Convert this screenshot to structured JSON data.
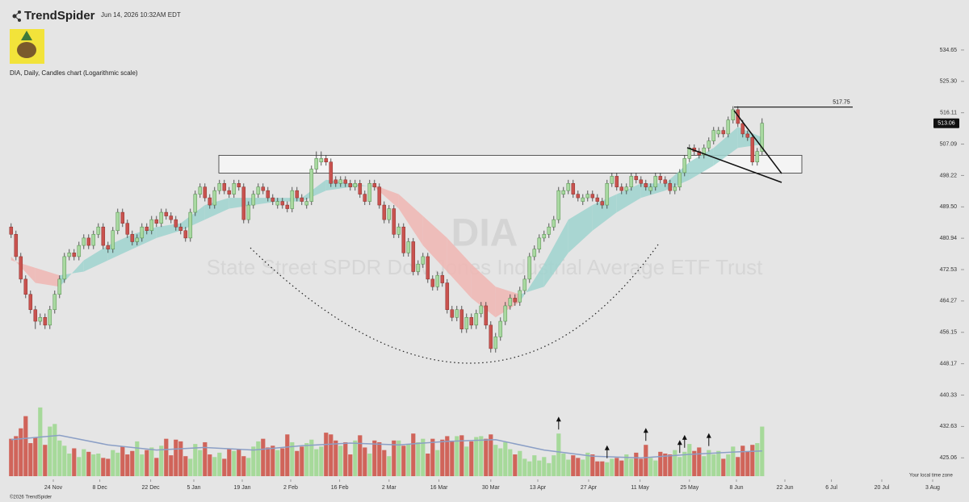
{
  "header": {
    "brand": "TrendSpider",
    "timestamp": "Jun 14, 2026 10:32AM EDT"
  },
  "footer": {
    "copyright": "©2026 TrendSpider",
    "timezone_note": "Your local time zone"
  },
  "chart_data": {
    "type": "candlestick",
    "title": "DIA, Daily, Candles chart (Logarithmic scale)",
    "watermark_symbol": "DIA",
    "watermark_name": "State Street SPDR Dow Jones Industrial Average ETF Trust",
    "log_scale": true,
    "grid": false,
    "up_color": "#a9d9a1",
    "down_color": "#c9534f",
    "ylim": [
      420.7,
      540
    ],
    "yticks": [
      534.65,
      {
        "value": 525.3,
        "label": "525.30"
      },
      516.11,
      507.09,
      498.22,
      {
        "value": 489.5,
        "label": "489.50"
      },
      480.94,
      472.53,
      464.27,
      456.15,
      448.17,
      440.33,
      432.63,
      425.06
    ],
    "xlim": [
      -2.3,
      197.7
    ],
    "xticks": [
      {
        "value": 8.7,
        "label": "24 Nov"
      },
      {
        "value": 18.3,
        "label": "8 Dec"
      },
      {
        "value": 28.8,
        "label": "22 Dec"
      },
      {
        "value": 37.7,
        "label": "5 Jan"
      },
      {
        "value": 47.7,
        "label": "19 Jan"
      },
      {
        "value": 57.7,
        "label": "2 Feb"
      },
      {
        "value": 67.8,
        "label": "16 Feb"
      },
      {
        "value": 78,
        "label": "2 Mar"
      },
      {
        "value": 88.3,
        "label": "16 Mar"
      },
      {
        "value": 99,
        "label": "30 Mar"
      },
      {
        "value": 108.7,
        "label": "13 Apr"
      },
      {
        "value": 119.2,
        "label": "27 Apr"
      },
      {
        "value": 129.8,
        "label": "11 May"
      },
      {
        "value": 140,
        "label": "25 May"
      },
      {
        "value": 149.7,
        "label": "8 Jun"
      },
      {
        "value": 159.7,
        "label": "22 Jun"
      },
      {
        "value": 169.3,
        "label": "6 Jul"
      },
      {
        "value": 179.7,
        "label": "20 Jul"
      },
      {
        "value": 190.2,
        "label": "3 Aug"
      }
    ],
    "candles": [
      [
        484,
        485,
        481,
        482
      ],
      [
        482,
        483,
        475,
        476
      ],
      [
        476,
        477,
        469,
        470
      ],
      [
        470,
        471,
        465,
        466
      ],
      [
        466,
        467,
        461,
        462
      ],
      [
        462,
        463,
        457,
        459
      ],
      [
        459,
        461,
        458,
        460
      ],
      [
        460,
        461,
        457,
        458
      ],
      [
        458,
        463,
        457,
        462
      ],
      [
        462,
        467,
        461,
        466
      ],
      [
        466,
        471,
        465,
        470
      ],
      [
        470,
        477,
        469,
        476
      ],
      [
        476,
        478,
        475,
        477
      ],
      [
        477,
        478,
        475,
        476
      ],
      [
        476,
        480,
        475,
        479
      ],
      [
        479,
        482,
        478,
        481
      ],
      [
        481,
        482,
        478,
        479
      ],
      [
        479,
        483,
        478,
        482
      ],
      [
        482,
        485,
        481,
        484
      ],
      [
        484,
        485,
        478,
        479
      ],
      [
        479,
        480,
        477,
        478
      ],
      [
        478,
        484,
        477,
        483
      ],
      [
        483,
        489,
        482,
        488
      ],
      [
        488,
        489,
        484,
        485
      ],
      [
        485,
        486,
        481,
        482
      ],
      [
        482,
        483,
        479,
        480
      ],
      [
        480,
        482,
        479,
        481
      ],
      [
        481,
        485,
        480,
        484
      ],
      [
        484,
        485,
        482,
        483
      ],
      [
        483,
        487,
        482,
        486
      ],
      [
        486,
        487,
        484,
        485
      ],
      [
        485,
        489,
        484,
        488
      ],
      [
        488,
        489,
        486,
        487
      ],
      [
        487,
        488,
        485,
        486
      ],
      [
        486,
        487,
        483,
        484
      ],
      [
        484,
        485,
        482,
        483
      ],
      [
        483,
        484,
        480,
        481
      ],
      [
        481,
        489,
        480,
        488
      ],
      [
        488,
        494,
        487,
        493
      ],
      [
        493,
        496,
        492,
        495
      ],
      [
        495,
        496,
        491,
        492
      ],
      [
        492,
        493,
        489,
        490
      ],
      [
        490,
        495,
        489,
        494
      ],
      [
        494,
        497,
        493,
        496
      ],
      [
        496,
        497,
        493,
        494
      ],
      [
        494,
        495,
        492,
        493
      ],
      [
        493,
        497,
        492,
        496
      ],
      [
        496,
        497,
        494,
        495
      ],
      [
        495,
        496,
        485,
        486
      ],
      [
        486,
        491,
        485,
        490
      ],
      [
        490,
        494,
        489,
        493
      ],
      [
        493,
        496,
        492,
        495
      ],
      [
        495,
        496,
        493,
        494
      ],
      [
        494,
        495,
        491,
        492
      ],
      [
        492,
        493,
        490,
        491
      ],
      [
        490,
        492,
        489,
        491
      ],
      [
        491,
        492,
        489,
        490
      ],
      [
        490,
        491,
        488,
        489
      ],
      [
        489,
        495,
        488,
        494
      ],
      [
        494,
        495,
        491,
        492
      ],
      [
        492,
        493,
        490,
        491
      ],
      [
        490,
        492,
        489,
        491
      ],
      [
        491,
        501,
        490,
        500
      ],
      [
        500,
        505,
        499,
        503
      ],
      [
        502,
        505,
        501,
        503
      ],
      [
        503,
        504,
        501,
        502
      ],
      [
        502,
        503,
        495,
        496
      ],
      [
        497,
        498,
        495,
        496
      ],
      [
        496,
        498,
        495,
        497
      ],
      [
        497,
        498,
        495,
        496
      ],
      [
        496,
        497,
        494,
        495
      ],
      [
        495,
        497,
        494,
        496
      ],
      [
        496,
        497,
        492,
        493
      ],
      [
        493,
        494,
        490,
        491
      ],
      [
        491,
        497,
        490,
        496
      ],
      [
        496,
        497,
        494,
        495
      ],
      [
        495,
        496,
        489,
        490
      ],
      [
        490,
        491,
        485,
        486
      ],
      [
        486,
        490,
        485,
        489
      ],
      [
        489,
        490,
        481,
        482
      ],
      [
        482,
        485,
        481,
        484
      ],
      [
        484,
        485,
        476,
        477
      ],
      [
        477,
        481,
        476,
        480
      ],
      [
        480,
        481,
        471,
        472
      ],
      [
        472,
        475,
        471,
        474
      ],
      [
        474,
        477,
        473,
        476
      ],
      [
        476,
        477,
        469,
        470
      ],
      [
        470,
        471,
        467,
        468
      ],
      [
        468,
        472,
        467,
        471
      ],
      [
        471,
        472,
        468,
        469
      ],
      [
        469,
        470,
        461,
        462
      ],
      [
        462,
        463,
        459,
        460
      ],
      [
        460,
        463,
        459,
        462
      ],
      [
        462,
        463,
        456,
        457
      ],
      [
        457,
        461,
        456,
        460
      ],
      [
        460,
        461,
        457,
        458
      ],
      [
        458,
        462,
        457,
        461
      ],
      [
        461,
        464,
        460,
        463
      ],
      [
        463,
        464,
        457,
        458
      ],
      [
        458,
        459,
        451,
        452
      ],
      [
        452,
        456,
        451,
        455
      ],
      [
        455,
        460,
        454,
        459
      ],
      [
        459,
        464,
        458,
        463
      ],
      [
        463,
        466,
        462,
        465
      ],
      [
        465,
        466,
        463,
        464
      ],
      [
        464,
        468,
        463,
        467
      ],
      [
        467,
        471,
        466,
        470
      ],
      [
        470,
        477,
        469,
        476
      ],
      [
        476,
        479,
        475,
        478
      ],
      [
        478,
        482,
        477,
        481
      ],
      [
        481,
        483,
        480,
        482
      ],
      [
        482,
        485,
        481,
        484
      ],
      [
        484,
        487,
        483,
        486
      ],
      [
        486,
        495,
        485,
        494
      ],
      [
        493,
        495,
        492,
        494
      ],
      [
        494,
        497,
        493,
        496
      ],
      [
        496,
        497,
        492,
        493
      ],
      [
        493,
        494,
        491,
        492
      ],
      [
        491,
        493,
        490,
        492
      ],
      [
        492,
        494,
        491,
        493
      ],
      [
        493,
        494,
        491,
        492
      ],
      [
        492,
        493,
        490,
        491
      ],
      [
        491,
        492,
        489,
        490
      ],
      [
        490,
        497,
        489,
        496
      ],
      [
        496,
        499,
        495,
        498
      ],
      [
        498,
        499,
        494,
        495
      ],
      [
        495,
        496,
        493,
        494
      ],
      [
        494,
        496,
        493,
        495
      ],
      [
        495,
        499,
        494,
        498
      ],
      [
        498,
        499,
        496,
        497
      ],
      [
        497,
        498,
        495,
        496
      ],
      [
        496,
        497,
        494,
        495
      ],
      [
        494,
        496,
        493,
        495
      ],
      [
        495,
        499,
        494,
        498
      ],
      [
        498,
        499,
        496,
        497
      ],
      [
        497,
        498,
        495,
        496
      ],
      [
        496,
        497,
        493,
        494
      ],
      [
        494,
        496,
        493,
        495
      ],
      [
        495,
        500,
        494,
        499
      ],
      [
        499,
        504,
        498,
        503
      ],
      [
        503,
        507,
        502,
        506
      ],
      [
        506,
        507,
        504,
        505
      ],
      [
        505,
        506,
        503,
        504
      ],
      [
        504,
        507,
        503,
        506
      ],
      [
        506,
        509,
        505,
        508
      ],
      [
        508,
        512,
        507,
        511
      ],
      [
        510,
        512,
        509,
        511
      ],
      [
        511,
        512,
        509,
        510
      ],
      [
        510,
        515,
        509,
        514
      ],
      [
        514,
        518,
        513,
        517
      ],
      [
        517,
        518,
        512,
        513
      ],
      [
        513,
        514,
        509,
        510
      ],
      [
        510,
        511,
        508,
        509
      ],
      [
        509,
        510,
        501,
        502
      ],
      [
        502,
        506,
        501,
        505
      ],
      [
        505,
        514.5,
        504,
        513.06
      ]
    ],
    "ribbon": {
      "x": [
        0,
        5,
        10,
        15,
        20,
        25,
        30,
        35,
        40,
        45,
        50,
        55,
        60,
        65,
        70,
        75,
        80,
        85,
        90,
        95,
        100,
        105,
        110,
        115,
        120,
        125,
        130,
        135,
        140,
        145,
        150,
        155
      ],
      "fast": [
        476,
        469,
        468,
        475,
        479,
        482,
        484,
        485,
        490,
        492,
        492,
        492,
        492,
        497,
        496,
        495,
        489,
        479,
        472,
        465,
        460,
        464,
        474,
        486,
        490,
        493,
        496,
        496,
        502,
        506,
        512,
        509
      ],
      "slow": [
        475,
        473,
        471,
        472,
        475,
        478,
        481,
        483,
        486,
        489,
        490,
        491,
        491,
        494,
        495,
        495.5,
        493,
        487,
        481,
        474,
        468,
        466,
        468,
        477,
        483,
        488,
        492,
        494,
        497,
        501,
        506,
        507
      ],
      "up_color": "#9fd4cf",
      "down_color": "#f0b6b3"
    },
    "zone": {
      "low": 498.9,
      "high": 503.9
    },
    "resistance": 517.75,
    "volume": [
      4.3,
      4.6,
      5.5,
      6.9,
      3.8,
      4.5,
      7.9,
      3.6,
      5.7,
      6.0,
      4.1,
      3.5,
      2.6,
      3.2,
      2.2,
      3.1,
      2.8,
      2.5,
      2.6,
      2.1,
      2.0,
      3.0,
      2.7,
      3.4,
      2.5,
      2.9,
      4.0,
      2.5,
      3.0,
      3.3,
      2.1,
      3.5,
      4.3,
      2.4,
      4.2,
      4.0,
      2.3,
      2.0,
      3.7,
      3.0,
      3.9,
      2.5,
      2.2,
      2.7,
      2.0,
      3.2,
      2.9,
      3.1,
      2.3,
      2.1,
      3.4,
      4.0,
      4.3,
      3.3,
      3.5,
      3.0,
      3.2,
      4.8,
      3.9,
      2.9,
      3.4,
      3.8,
      4.2,
      3.1,
      3.4,
      5.0,
      4.8,
      4.1,
      3.5,
      3.9,
      2.5,
      4.1,
      4.7,
      3.3,
      2.6,
      4.1,
      3.9,
      3.0,
      2.3,
      4.1,
      4.1,
      3.5,
      3.7,
      4.9,
      3.9,
      4.3,
      2.6,
      4.3,
      3.0,
      4.2,
      4.6,
      4.0,
      4.6,
      4.7,
      3.4,
      4.0,
      4.5,
      4.6,
      4.3,
      4.8,
      3.6,
      3.2,
      3.9,
      3.1,
      2.5,
      2.9,
      2.0,
      1.7,
      2.4,
      1.8,
      2.2,
      1.5,
      2.4,
      4.9,
      2.6,
      1.9,
      2.4,
      2.1,
      1.9,
      2.7,
      2.5,
      1.7,
      1.7,
      1.6,
      2.0,
      2.1,
      1.8,
      2.5,
      2.0,
      2.7,
      2.0,
      3.6,
      2.1,
      1.8,
      2.8,
      2.6,
      2.5,
      3.0,
      2.2,
      2.8,
      3.7,
      2.9,
      3.3,
      2.3,
      3.0,
      2.5,
      2.9,
      2.0,
      2.5,
      3.4,
      2.2,
      3.5,
      2.8,
      3.6,
      3.8,
      5.7
    ],
    "volume_lim": [
      0,
      9
    ],
    "volume_up_color": "#a6d99a",
    "volume_down_color": "#d0645a",
    "volume_ma": {
      "x": [
        0,
        10,
        20,
        30,
        40,
        50,
        60,
        70,
        80,
        90,
        100,
        110,
        120,
        130,
        140,
        150,
        155
      ],
      "values": [
        4.2,
        4.7,
        3.6,
        3.0,
        3.3,
        3.0,
        3.5,
        3.8,
        3.6,
        4.0,
        4.2,
        3.0,
        2.3,
        2.1,
        2.5,
        2.8,
        2.9
      ],
      "color": "#8b9fc6"
    }
  }
}
